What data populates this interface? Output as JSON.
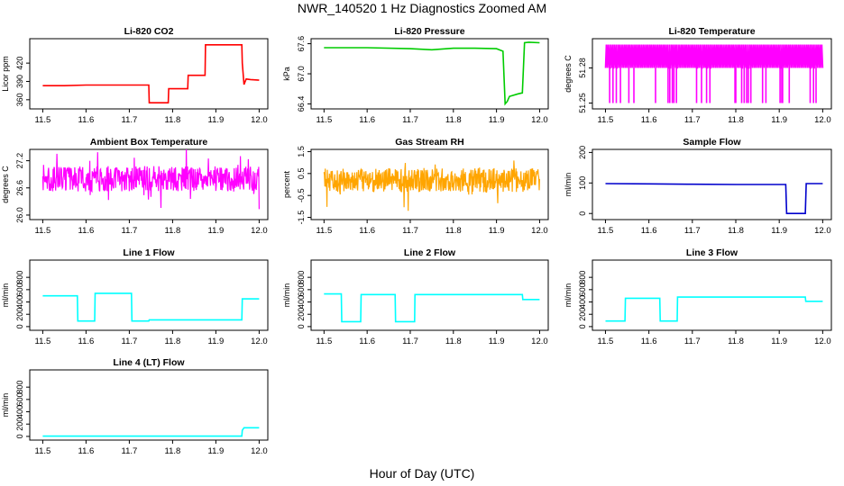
{
  "figure": {
    "title": "NWR_140520  1 Hz Diagnostics Zoomed AM",
    "xlabel": "Hour of Day (UTC)"
  },
  "chart_data": [
    {
      "id": "co2",
      "type": "line",
      "title": "Li-820 CO2",
      "ylabel": "Licor ppm",
      "color": "#ff0000",
      "xlim": [
        11.47,
        12.02
      ],
      "ylim": [
        345,
        460
      ],
      "xticks": [
        "11.5",
        "11.6",
        "11.7",
        "11.8",
        "11.9",
        "12.0"
      ],
      "yticks": [
        "360",
        "390",
        "420"
      ],
      "x": [
        11.5,
        11.55,
        11.6,
        11.65,
        11.7,
        11.745,
        11.746,
        11.79,
        11.791,
        11.835,
        11.836,
        11.875,
        11.876,
        11.96,
        11.961,
        11.965,
        11.97,
        11.98,
        12.0
      ],
      "y": [
        383,
        383,
        384,
        384,
        384,
        384,
        355,
        355,
        378,
        378,
        400,
        400,
        450,
        450,
        420,
        385,
        394,
        393,
        392
      ]
    },
    {
      "id": "pressure",
      "type": "line",
      "title": "Li-820 Pressure",
      "ylabel": "kPa",
      "color": "#00cc00",
      "xlim": [
        11.47,
        12.02
      ],
      "ylim": [
        66.3,
        67.7
      ],
      "xticks": [
        "11.5",
        "11.6",
        "11.7",
        "11.8",
        "11.9",
        "12.0"
      ],
      "yticks": [
        "66.4",
        "67.0",
        "67.6"
      ],
      "x": [
        11.5,
        11.6,
        11.7,
        11.75,
        11.8,
        11.85,
        11.9,
        11.915,
        11.92,
        11.925,
        11.93,
        11.95,
        11.96,
        11.965,
        11.975,
        12.0
      ],
      "y": [
        67.52,
        67.52,
        67.5,
        67.48,
        67.51,
        67.51,
        67.5,
        67.45,
        66.4,
        66.45,
        66.55,
        66.6,
        66.62,
        67.62,
        67.63,
        67.62
      ]
    },
    {
      "id": "licor-temp",
      "type": "line",
      "title": "Li-820 Temperature",
      "ylabel": "degrees C",
      "color": "#ff00ff",
      "xlim": [
        11.47,
        12.02
      ],
      "ylim": [
        51.245,
        51.305
      ],
      "xticks": [
        "11.5",
        "11.6",
        "11.7",
        "11.8",
        "11.9",
        "12.0"
      ],
      "yticks": [
        "51.25",
        "51.28"
      ],
      "x": [
        11.5,
        12.0
      ],
      "y": [
        51.28,
        51.28
      ]
    },
    {
      "id": "ambient-temp",
      "type": "line",
      "title": "Ambient Box Temperature",
      "ylabel": "degrees C",
      "color": "#ff00ff",
      "xlim": [
        11.47,
        12.02
      ],
      "ylim": [
        25.9,
        27.45
      ],
      "xticks": [
        "11.5",
        "11.6",
        "11.7",
        "11.8",
        "11.9",
        "12.0"
      ],
      "yticks": [
        "26.0",
        "26.6",
        "27.2"
      ],
      "x": [
        11.5,
        12.0
      ],
      "y": [
        26.8,
        26.8
      ]
    },
    {
      "id": "rh",
      "type": "line",
      "title": "Gas Stream RH",
      "ylabel": "percent",
      "color": "#ffa500",
      "xlim": [
        11.47,
        12.02
      ],
      "ylim": [
        -1.6,
        1.6
      ],
      "xticks": [
        "11.5",
        "11.6",
        "11.7",
        "11.8",
        "11.9",
        "12.0"
      ],
      "yticks": [
        "-1.5",
        "-0.5",
        "0.5",
        "1.5"
      ],
      "x": [
        11.5,
        12.0
      ],
      "y": [
        0.2,
        0.2
      ]
    },
    {
      "id": "sample-flow",
      "type": "line",
      "title": "Sample Flow",
      "ylabel": "ml/min",
      "color": "#0000cc",
      "xlim": [
        11.47,
        12.02
      ],
      "ylim": [
        -20,
        210
      ],
      "xticks": [
        "11.5",
        "11.6",
        "11.7",
        "11.8",
        "11.9",
        "12.0"
      ],
      "yticks": [
        "0",
        "100",
        "200"
      ],
      "x": [
        11.5,
        11.6,
        11.7,
        11.8,
        11.9,
        11.915,
        11.917,
        11.96,
        11.962,
        12.0
      ],
      "y": [
        98,
        97,
        96,
        95,
        95,
        95,
        0,
        0,
        98,
        98
      ]
    },
    {
      "id": "line1",
      "type": "line",
      "title": "Line 1 Flow",
      "ylabel": "ml/min",
      "color": "#00ffff",
      "xlim": [
        11.47,
        12.02
      ],
      "ylim": [
        -60,
        1080
      ],
      "xticks": [
        "11.5",
        "11.6",
        "11.7",
        "11.8",
        "11.9",
        "12.0"
      ],
      "yticks": [
        "0",
        "200",
        "400",
        "600",
        "800"
      ],
      "x": [
        11.5,
        11.58,
        11.581,
        11.62,
        11.621,
        11.705,
        11.706,
        11.745,
        11.746,
        11.95,
        11.955,
        11.96,
        11.961,
        12.0
      ],
      "y": [
        500,
        500,
        90,
        90,
        540,
        540,
        90,
        90,
        110,
        110,
        110,
        110,
        450,
        450
      ]
    },
    {
      "id": "line2",
      "type": "line",
      "title": "Line 2 Flow",
      "ylabel": "ml/min",
      "color": "#00ffff",
      "xlim": [
        11.47,
        12.02
      ],
      "ylim": [
        -60,
        1080
      ],
      "xticks": [
        "11.5",
        "11.6",
        "11.7",
        "11.8",
        "11.9",
        "12.0"
      ],
      "yticks": [
        "0",
        "200",
        "400",
        "600",
        "800"
      ],
      "x": [
        11.5,
        11.54,
        11.541,
        11.585,
        11.586,
        11.665,
        11.666,
        11.71,
        11.711,
        11.96,
        11.961,
        12.0
      ],
      "y": [
        530,
        530,
        80,
        80,
        520,
        520,
        80,
        80,
        520,
        520,
        440,
        440
      ]
    },
    {
      "id": "line3",
      "type": "line",
      "title": "Line 3 Flow",
      "ylabel": "ml/min",
      "color": "#00ffff",
      "xlim": [
        11.47,
        12.02
      ],
      "ylim": [
        -60,
        1080
      ],
      "xticks": [
        "11.5",
        "11.6",
        "11.7",
        "11.8",
        "11.9",
        "12.0"
      ],
      "yticks": [
        "0",
        "200",
        "400",
        "600",
        "800"
      ],
      "x": [
        11.5,
        11.545,
        11.546,
        11.625,
        11.626,
        11.665,
        11.666,
        11.96,
        11.961,
        12.0
      ],
      "y": [
        90,
        90,
        460,
        460,
        90,
        90,
        480,
        480,
        410,
        410
      ]
    },
    {
      "id": "line4",
      "type": "line",
      "title": "Line 4 (LT) Flow",
      "ylabel": "ml/min",
      "color": "#00ffff",
      "xlim": [
        11.47,
        12.02
      ],
      "ylim": [
        -60,
        1080
      ],
      "xticks": [
        "11.5",
        "11.6",
        "11.7",
        "11.8",
        "11.9",
        "12.0"
      ],
      "yticks": [
        "0",
        "200",
        "400",
        "600",
        "800"
      ],
      "x": [
        11.5,
        11.96,
        11.961,
        11.965,
        12.0
      ],
      "y": [
        5,
        5,
        100,
        140,
        140
      ]
    }
  ]
}
